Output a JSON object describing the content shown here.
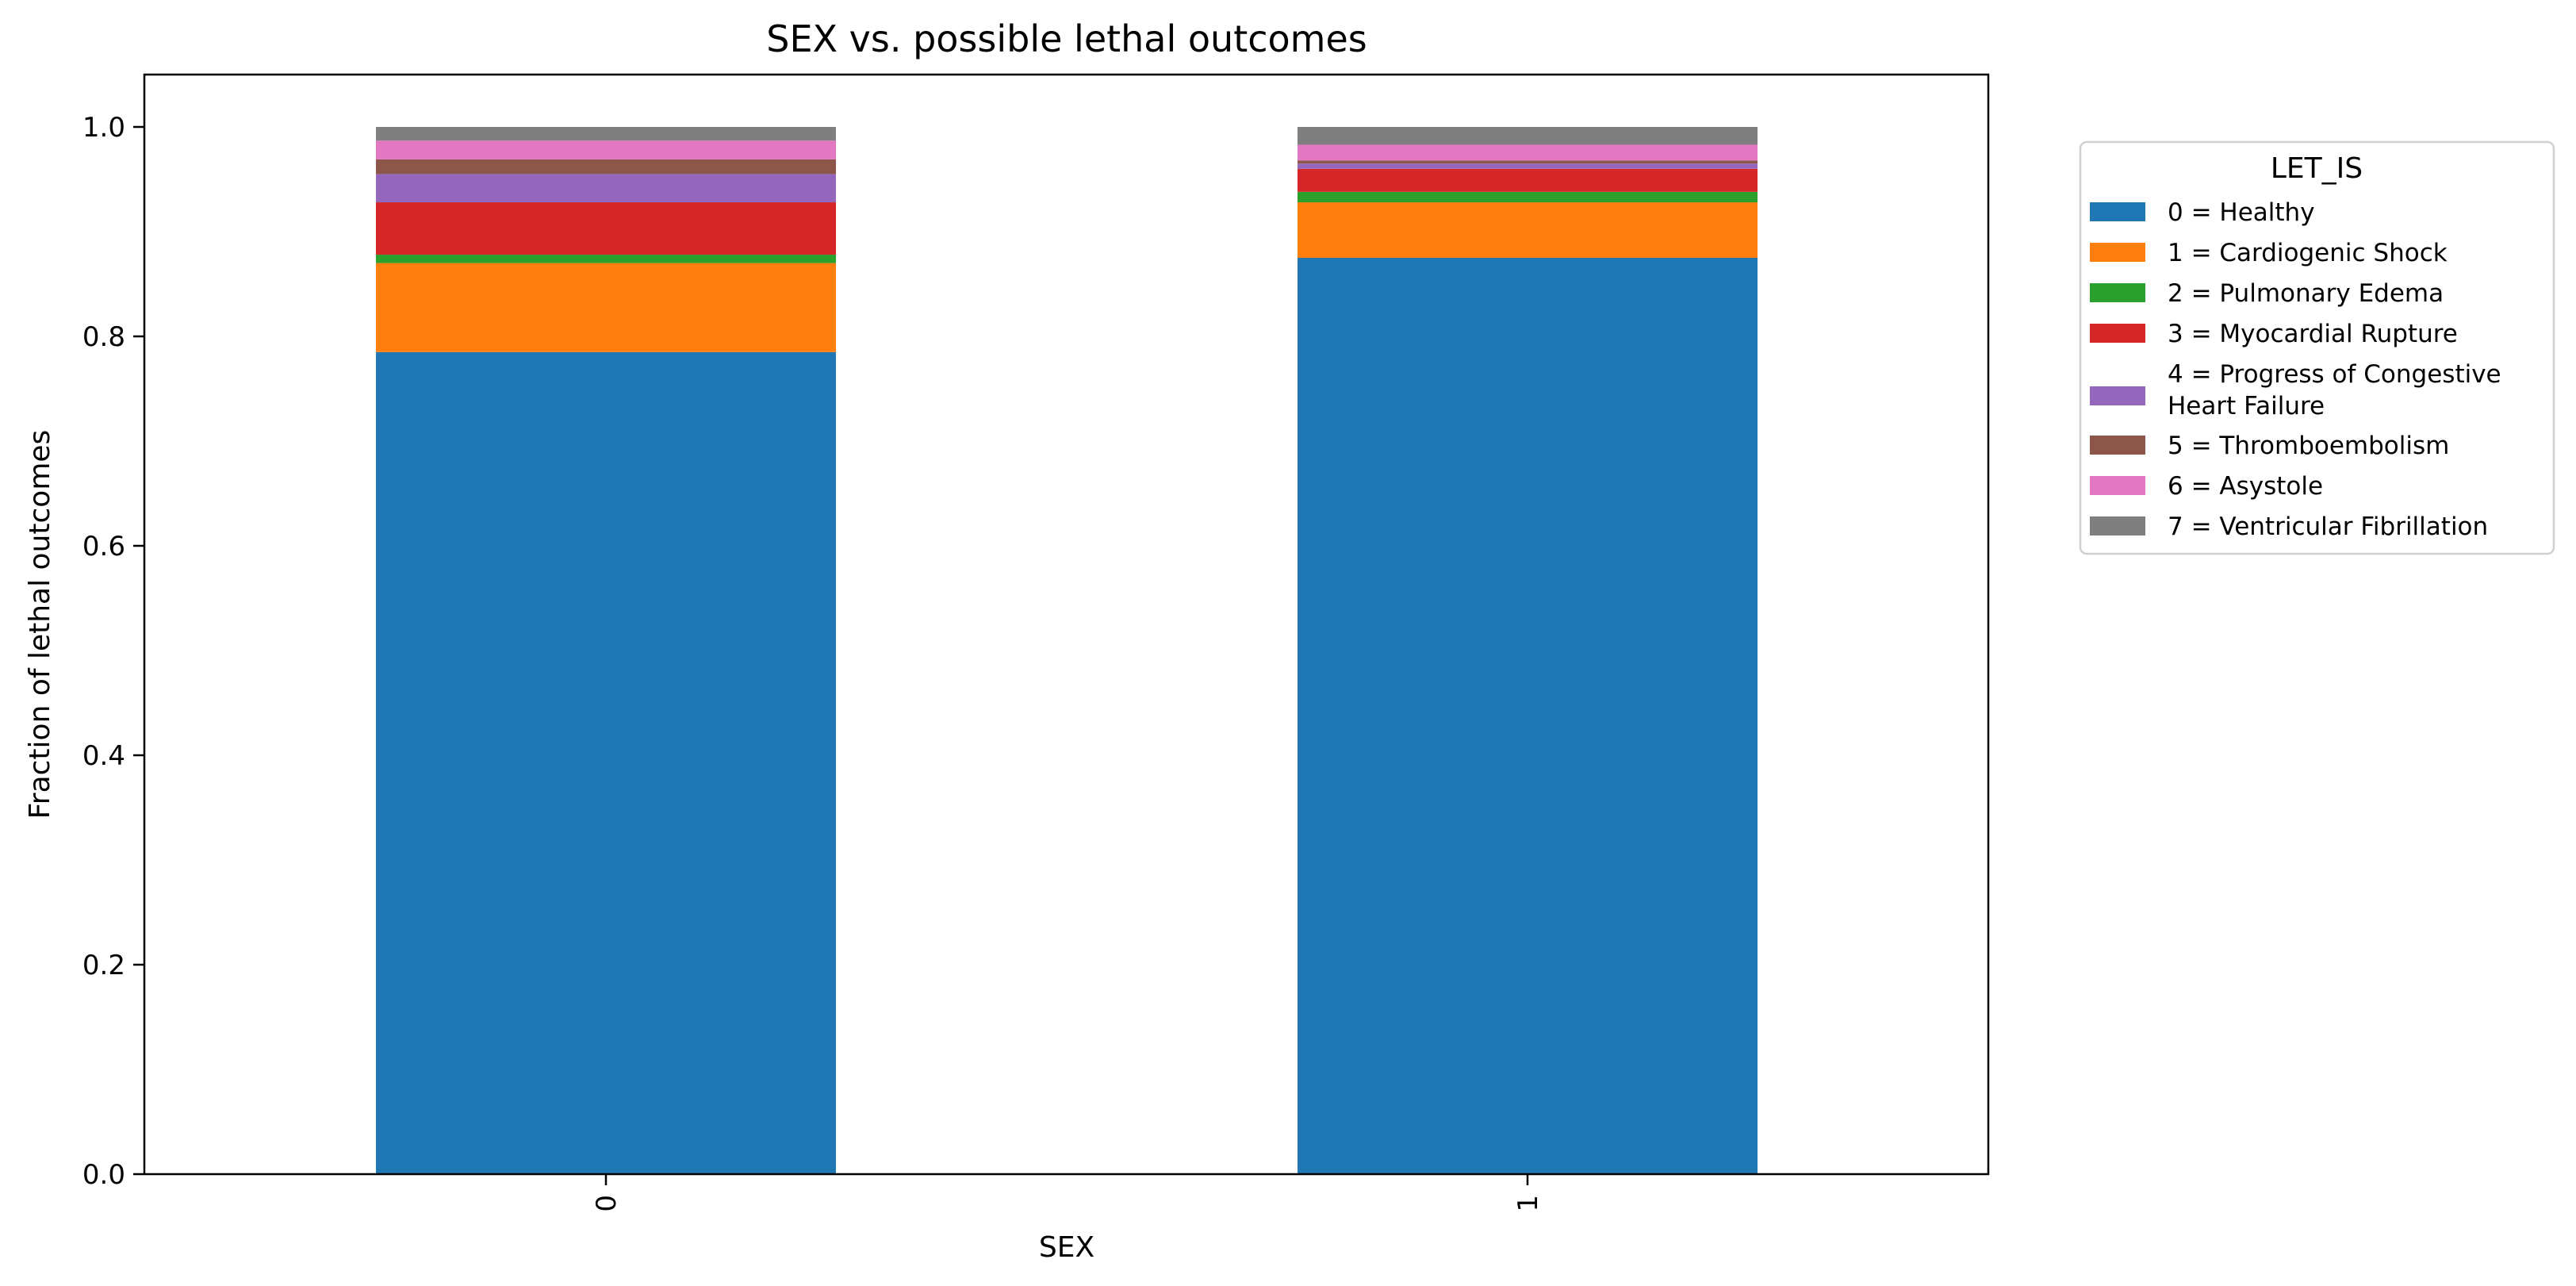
{
  "chart_data": {
    "type": "bar",
    "stacked": true,
    "title": "SEX vs. possible lethal outcomes",
    "xlabel": "SEX",
    "ylabel": "Fraction of lethal outcomes",
    "categories": [
      "0",
      "1"
    ],
    "ylim": [
      0,
      1.05
    ],
    "yticks": [
      "0.0",
      "0.2",
      "0.4",
      "0.6",
      "0.8",
      "1.0"
    ],
    "grid": false,
    "legend": {
      "title": "LET_IS",
      "placement": "outside-right-top",
      "entries": [
        {
          "text": "0 = Healthy",
          "line1": "0 = Healthy",
          "line2": ""
        },
        {
          "text": "1 = Cardiogenic Shock",
          "line1": "1 = Cardiogenic Shock",
          "line2": ""
        },
        {
          "text": "2 = Pulmonary Edema",
          "line1": "2 = Pulmonary Edema",
          "line2": ""
        },
        {
          "text": "3 = Myocardial Rupture",
          "line1": "3 = Myocardial Rupture",
          "line2": ""
        },
        {
          "text": "4 = Progress of Congestive Heart Failure",
          "line1": "4 = Progress of Congestive",
          "line2": "Heart Failure"
        },
        {
          "text": "5 = Thromboembolism",
          "line1": "5 = Thromboembolism",
          "line2": ""
        },
        {
          "text": "6 = Asystole",
          "line1": "6 = Asystole",
          "line2": ""
        },
        {
          "text": "7 = Ventricular Fibrillation",
          "line1": "7 = Ventricular Fibrillation",
          "line2": ""
        }
      ]
    },
    "series": [
      {
        "name": "0 = Healthy",
        "color": "#1f77b4",
        "values": [
          0.785,
          0.875
        ]
      },
      {
        "name": "1 = Cardiogenic Shock",
        "color": "#ff7f0e",
        "values": [
          0.085,
          0.053
        ]
      },
      {
        "name": "2 = Pulmonary Edema",
        "color": "#2ca02c",
        "values": [
          0.008,
          0.01
        ]
      },
      {
        "name": "3 = Myocardial Rupture",
        "color": "#d62728",
        "values": [
          0.05,
          0.022
        ]
      },
      {
        "name": "4 = Progress of Congestive Heart Failure",
        "color": "#9467bd",
        "values": [
          0.027,
          0.005
        ]
      },
      {
        "name": "5 = Thromboembolism",
        "color": "#8c564b",
        "values": [
          0.014,
          0.003
        ]
      },
      {
        "name": "6 = Asystole",
        "color": "#e377c2",
        "values": [
          0.018,
          0.015
        ]
      },
      {
        "name": "7 = Ventricular Fibrillation",
        "color": "#7f7f7f",
        "values": [
          0.013,
          0.017
        ]
      }
    ]
  }
}
